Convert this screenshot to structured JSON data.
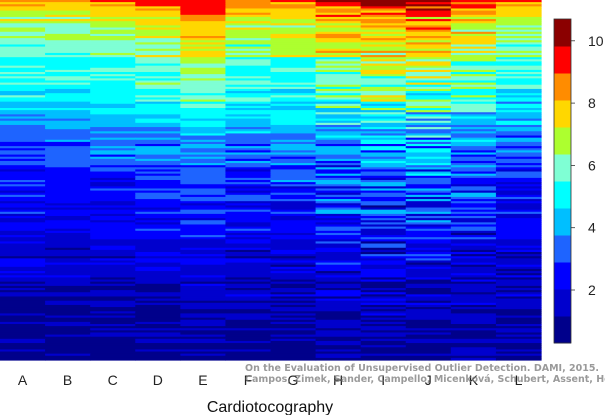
{
  "chart_data": {
    "type": "heatmap",
    "title": "",
    "xlabel": "Cardiotocography",
    "ylabel": "",
    "columns": [
      "A",
      "B",
      "C",
      "D",
      "E",
      "F",
      "G",
      "H",
      "I",
      "J",
      "K",
      "L"
    ],
    "value_range": [
      0.3,
      10.7
    ],
    "colorbar": {
      "ticks": [
        2,
        4,
        6,
        8,
        10
      ],
      "colors": [
        "#00008b",
        "#0000cd",
        "#0000ff",
        "#1e64ff",
        "#00bfff",
        "#00ffff",
        "#7fffd4",
        "#adff2f",
        "#ffd700",
        "#ff8c00",
        "#ff0000",
        "#8b0000"
      ]
    },
    "row_profiles": {
      "description_free": true,
      "column_intensity": [
        0.82,
        0.8,
        0.84,
        0.9,
        1.0,
        0.86,
        0.88,
        0.96,
        1.0,
        1.02,
        0.94,
        0.84
      ],
      "column_noise": [
        0.06,
        0.06,
        0.07,
        0.07,
        0.06,
        0.09,
        0.09,
        0.14,
        0.16,
        0.16,
        0.13,
        0.09
      ]
    }
  },
  "credit": {
    "line1": "On the Evaluation of Unsupervised Outlier Detection. DAMI, 2015.",
    "line2": "Campos, Zimek, Sander, Campello, Micenková, Schubert, Assent, Houle"
  }
}
